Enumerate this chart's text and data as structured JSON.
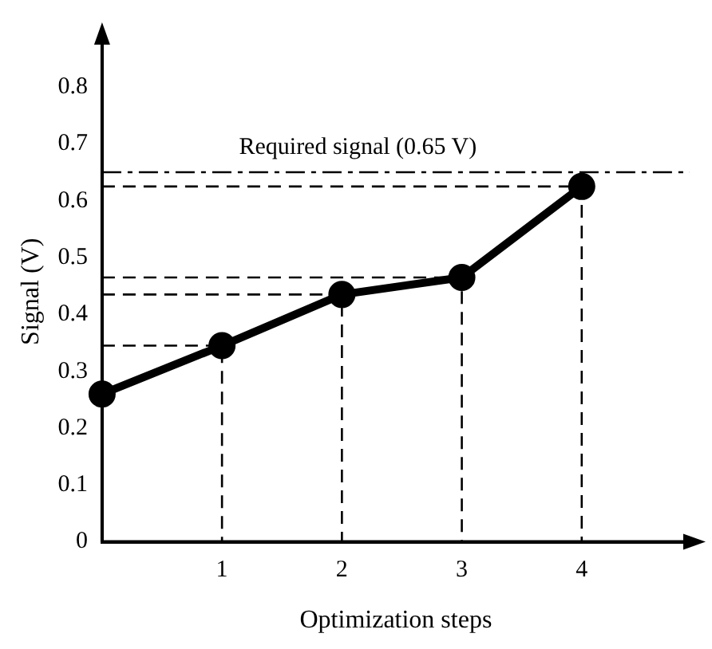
{
  "chart_data": {
    "type": "line",
    "xlabel": "Optimization steps",
    "ylabel": "Signal (V)",
    "x": [
      0,
      1,
      2,
      3,
      4
    ],
    "series": [
      {
        "color": "#000000",
        "values": [
          0.26,
          0.345,
          0.435,
          0.465,
          0.625
        ]
      },
      {
        "type": "line",
        "color": "#000000",
        "line_style": "dashed",
        "marker": "none",
        "x": [
          0,
          1,
          1
        ],
        "values": [
          0.345,
          0.345,
          0
        ]
      },
      {
        "type": "line",
        "color": "#000000",
        "line_style": "dashed",
        "marker": "none",
        "x": [
          0,
          2,
          2
        ],
        "values": [
          0.435,
          0.435,
          0
        ]
      },
      {
        "type": "line",
        "color": "#000000",
        "line_style": "dashed",
        "marker": "none",
        "x": [
          0,
          3,
          3
        ],
        "values": [
          0.465,
          0.465,
          0
        ]
      },
      {
        "type": "line",
        "color": "#000000",
        "line_style": "dashed",
        "marker": "none",
        "x": [
          0,
          4,
          4
        ],
        "values": [
          0.625,
          0.625,
          0
        ]
      }
    ],
    "xlim": [
      0,
      4.9
    ],
    "xticks": [
      1,
      2,
      3,
      4
    ],
    "ylim": [
      0,
      0.88
    ],
    "yticks": [
      0,
      0.1,
      0.2,
      0.3,
      0.4,
      0.5,
      0.6,
      0.7,
      0.8
    ],
    "ref_lines": [
      {
        "axis": "y",
        "value": 0.65,
        "label": "Required signal (0.65 V)",
        "color": "#000000",
        "line_style": "dashdot"
      }
    ],
    "marker": "circle",
    "line_style": "solid",
    "grid": false,
    "legend": false
  }
}
